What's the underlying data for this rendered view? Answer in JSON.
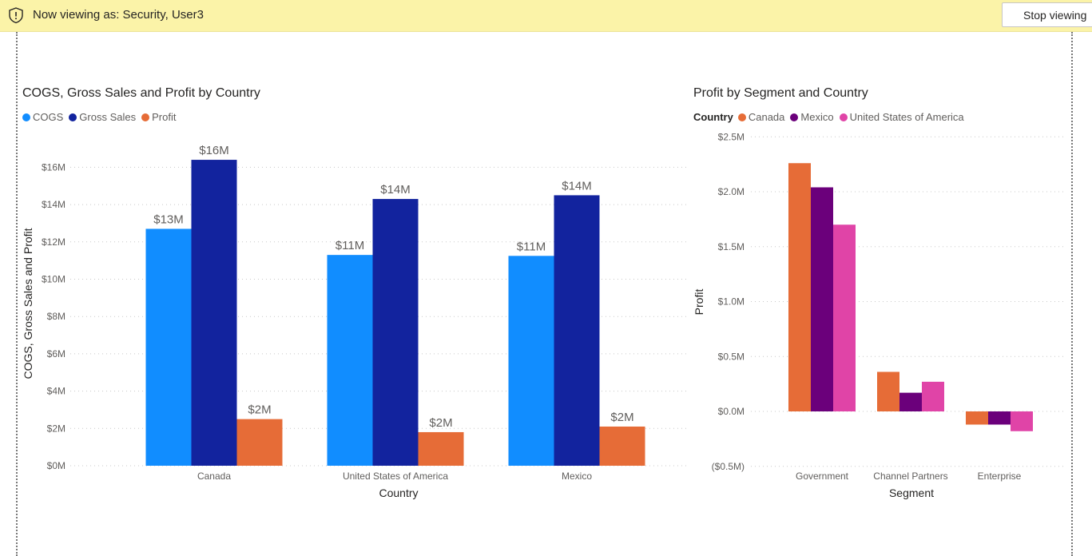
{
  "banner": {
    "message": "Now viewing as: Security, User3",
    "stop_button": "Stop viewing",
    "icon": "shield-icon"
  },
  "charts": [
    {
      "title": "COGS, Gross Sales and Profit by Country",
      "legend": [
        {
          "name": "COGS",
          "color": "#118dff"
        },
        {
          "name": "Gross Sales",
          "color": "#12239e"
        },
        {
          "name": "Profit",
          "color": "#e66c37"
        }
      ],
      "xlabel": "Country",
      "ylabel": "COGS, Gross Sales and Profit",
      "yticks": [
        "$0M",
        "$2M",
        "$4M",
        "$6M",
        "$8M",
        "$10M",
        "$12M",
        "$14M",
        "$16M"
      ]
    },
    {
      "title": "Profit by Segment and Country",
      "legend_title": "Country",
      "legend": [
        {
          "name": "Canada",
          "color": "#e66c37"
        },
        {
          "name": "Mexico",
          "color": "#6b007b"
        },
        {
          "name": "United States of America",
          "color": "#e044a7"
        }
      ],
      "xlabel": "Segment",
      "ylabel": "Profit",
      "yticks": [
        "($0.5M)",
        "$0.0M",
        "$0.5M",
        "$1.0M",
        "$1.5M",
        "$2.0M",
        "$2.5M"
      ]
    }
  ],
  "chart_data": [
    {
      "type": "bar",
      "title": "COGS, Gross Sales and Profit by Country",
      "xlabel": "Country",
      "ylabel": "COGS, Gross Sales and Profit",
      "categories": [
        "Canada",
        "United States of America",
        "Mexico"
      ],
      "series": [
        {
          "name": "COGS",
          "color": "#118dff",
          "values": [
            12.7,
            11.3,
            11.25
          ],
          "labels": [
            "$13M",
            "$11M",
            "$11M"
          ]
        },
        {
          "name": "Gross Sales",
          "color": "#12239e",
          "values": [
            16.4,
            14.3,
            14.5
          ],
          "labels": [
            "$16M",
            "$14M",
            "$14M"
          ]
        },
        {
          "name": "Profit",
          "color": "#e66c37",
          "values": [
            2.5,
            1.8,
            2.1
          ],
          "labels": [
            "$2M",
            "$2M",
            "$2M"
          ]
        }
      ],
      "ylim": [
        0,
        16.5
      ],
      "yticks": [
        0,
        2,
        4,
        6,
        8,
        10,
        12,
        14,
        16
      ],
      "grid": true,
      "legend": "top-left"
    },
    {
      "type": "bar",
      "title": "Profit by Segment and Country",
      "xlabel": "Segment",
      "ylabel": "Profit",
      "categories": [
        "Government",
        "Channel Partners",
        "Enterprise"
      ],
      "series": [
        {
          "name": "Canada",
          "color": "#e66c37",
          "values": [
            2.26,
            0.36,
            -0.12
          ]
        },
        {
          "name": "Mexico",
          "color": "#6b007b",
          "values": [
            2.04,
            0.17,
            -0.12
          ]
        },
        {
          "name": "United States of America",
          "color": "#e044a7",
          "values": [
            1.7,
            0.27,
            -0.18
          ]
        }
      ],
      "ylim": [
        -0.5,
        2.5
      ],
      "yticks": [
        -0.5,
        0,
        0.5,
        1.0,
        1.5,
        2.0,
        2.5
      ],
      "grid": true,
      "legend": "top-left"
    }
  ]
}
